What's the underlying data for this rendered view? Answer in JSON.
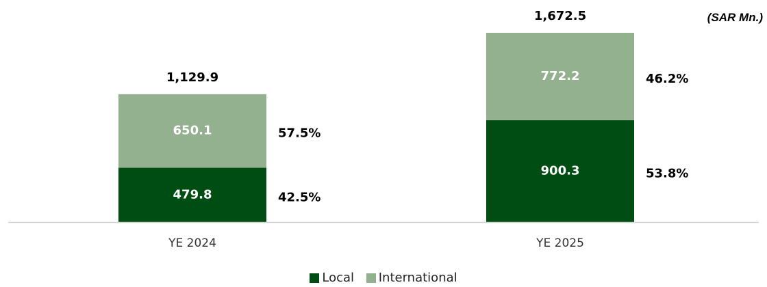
{
  "chart_data": {
    "type": "bar",
    "stacked": true,
    "unit_note": "(SAR Mn.)",
    "categories": [
      "YE 2024",
      "YE 2025"
    ],
    "series": [
      {
        "name": "Local",
        "values": [
          479.8,
          900.3
        ],
        "value_labels": [
          "479.8",
          "900.3"
        ],
        "share_labels": [
          "42.5%",
          "53.8%"
        ],
        "color": "#004d14"
      },
      {
        "name": "International",
        "values": [
          650.1,
          772.2
        ],
        "value_labels": [
          "650.1",
          "772.2"
        ],
        "share_labels": [
          "57.5%",
          "46.2%"
        ],
        "color": "#93b08f"
      }
    ],
    "totals": [
      1129.9,
      1672.5
    ],
    "total_labels": [
      "1,129.9",
      "1,672.5"
    ],
    "ylim": [
      0,
      1672.5
    ],
    "grid": false,
    "legend_position": "bottom-center"
  }
}
